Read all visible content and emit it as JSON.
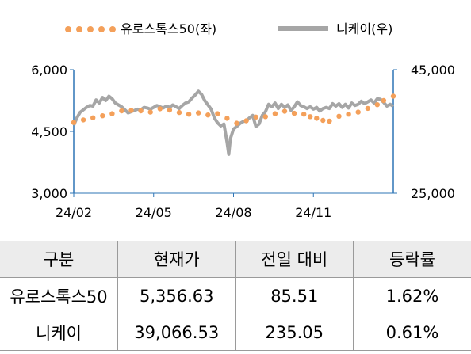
{
  "legend": {
    "series1": "유로스톡스50(좌)",
    "series2": "니케이(우)"
  },
  "table": {
    "headers": [
      "구분",
      "현재가",
      "전일 대비",
      "등락률"
    ],
    "rows": [
      [
        "유로스톡스50",
        "5,356.63",
        "85.51",
        "1.62%"
      ],
      [
        "니케이",
        "39,066.53",
        "235.05",
        "0.61%"
      ]
    ]
  },
  "colors": {
    "eurostoxx": "#f4a05a",
    "nikkei": "#a6a6a6",
    "axis": "#2e75b6"
  },
  "chart_data": {
    "type": "line",
    "x_tick_labels": [
      "24/02",
      "24/05",
      "24/08",
      "24/11"
    ],
    "y_left_ticks": [
      "6,000",
      "4,500",
      "3,000"
    ],
    "y_right_ticks": [
      "45,000",
      "25,000"
    ],
    "y_left_lim": [
      3000,
      6000
    ],
    "y_right_lim": [
      25000,
      45000
    ],
    "x_index_range": [
      0,
      100
    ],
    "x_tick_index": [
      0,
      25,
      50,
      75
    ],
    "series": [
      {
        "name": "유로스톡스50(좌)",
        "axis": "left",
        "style": "dotted",
        "values": [
          [
            0,
            4720
          ],
          [
            3,
            4780
          ],
          [
            6,
            4830
          ],
          [
            9,
            4880
          ],
          [
            12,
            4930
          ],
          [
            15,
            5000
          ],
          [
            18,
            5010
          ],
          [
            21,
            5000
          ],
          [
            24,
            4970
          ],
          [
            27,
            5050
          ],
          [
            30,
            5020
          ],
          [
            33,
            4960
          ],
          [
            36,
            4920
          ],
          [
            39,
            4950
          ],
          [
            42,
            4900
          ],
          [
            45,
            4930
          ],
          [
            48,
            4820
          ],
          [
            51,
            4700
          ],
          [
            54,
            4760
          ],
          [
            57,
            4850
          ],
          [
            60,
            4860
          ],
          [
            63,
            4930
          ],
          [
            66,
            4990
          ],
          [
            69,
            4940
          ],
          [
            72,
            4920
          ],
          [
            74,
            4860
          ],
          [
            76,
            4820
          ],
          [
            78,
            4770
          ],
          [
            80,
            4750
          ],
          [
            83,
            4870
          ],
          [
            86,
            4920
          ],
          [
            89,
            4970
          ],
          [
            92,
            5060
          ],
          [
            95,
            5150
          ],
          [
            97,
            5250
          ],
          [
            100,
            5356
          ]
        ]
      },
      {
        "name": "니케이(우)",
        "axis": "right",
        "style": "solid",
        "values": [
          [
            0,
            36000
          ],
          [
            1,
            37200
          ],
          [
            2,
            38100
          ],
          [
            3,
            38500
          ],
          [
            4,
            38900
          ],
          [
            5,
            39200
          ],
          [
            6,
            39100
          ],
          [
            7,
            40100
          ],
          [
            8,
            39600
          ],
          [
            9,
            40500
          ],
          [
            10,
            40000
          ],
          [
            11,
            40700
          ],
          [
            12,
            40300
          ],
          [
            13,
            39600
          ],
          [
            14,
            39300
          ],
          [
            15,
            39000
          ],
          [
            16,
            38500
          ],
          [
            17,
            38000
          ],
          [
            18,
            38200
          ],
          [
            19,
            38400
          ],
          [
            20,
            38600
          ],
          [
            21,
            38500
          ],
          [
            22,
            38900
          ],
          [
            23,
            38800
          ],
          [
            24,
            38600
          ],
          [
            25,
            38900
          ],
          [
            26,
            39200
          ],
          [
            27,
            39000
          ],
          [
            28,
            38800
          ],
          [
            29,
            39100
          ],
          [
            30,
            38900
          ],
          [
            31,
            39300
          ],
          [
            32,
            39000
          ],
          [
            33,
            38700
          ],
          [
            34,
            39200
          ],
          [
            35,
            39600
          ],
          [
            36,
            39800
          ],
          [
            37,
            40400
          ],
          [
            38,
            40900
          ],
          [
            39,
            41500
          ],
          [
            40,
            41000
          ],
          [
            41,
            40000
          ],
          [
            42,
            39300
          ],
          [
            43,
            38600
          ],
          [
            44,
            37200
          ],
          [
            45,
            36400
          ],
          [
            46,
            35900
          ],
          [
            47,
            36200
          ],
          [
            48,
            33200
          ],
          [
            48.5,
            31300
          ],
          [
            49,
            33800
          ],
          [
            50,
            35400
          ],
          [
            51,
            35800
          ],
          [
            52,
            36300
          ],
          [
            53,
            36600
          ],
          [
            54,
            36700
          ],
          [
            55,
            37200
          ],
          [
            56,
            37600
          ],
          [
            57,
            35800
          ],
          [
            58,
            36200
          ],
          [
            59,
            37600
          ],
          [
            60,
            38200
          ],
          [
            61,
            39400
          ],
          [
            62,
            39000
          ],
          [
            63,
            39600
          ],
          [
            64,
            38700
          ],
          [
            65,
            39400
          ],
          [
            66,
            38900
          ],
          [
            67,
            39300
          ],
          [
            68,
            38400
          ],
          [
            69,
            39000
          ],
          [
            70,
            39800
          ],
          [
            71,
            39200
          ],
          [
            72,
            39000
          ],
          [
            73,
            38700
          ],
          [
            74,
            39000
          ],
          [
            75,
            38600
          ],
          [
            76,
            38900
          ],
          [
            77,
            38300
          ],
          [
            78,
            38700
          ],
          [
            79,
            38900
          ],
          [
            80,
            38700
          ],
          [
            81,
            39500
          ],
          [
            82,
            39100
          ],
          [
            83,
            39500
          ],
          [
            84,
            38900
          ],
          [
            85,
            39400
          ],
          [
            86,
            38800
          ],
          [
            87,
            39600
          ],
          [
            88,
            39200
          ],
          [
            89,
            39400
          ],
          [
            90,
            39900
          ],
          [
            91,
            39500
          ],
          [
            92,
            39800
          ],
          [
            93,
            40100
          ],
          [
            94,
            39600
          ],
          [
            95,
            40300
          ],
          [
            96,
            40200
          ],
          [
            97,
            39700
          ],
          [
            98,
            39100
          ],
          [
            99,
            39400
          ],
          [
            100,
            39066
          ]
        ]
      }
    ]
  }
}
